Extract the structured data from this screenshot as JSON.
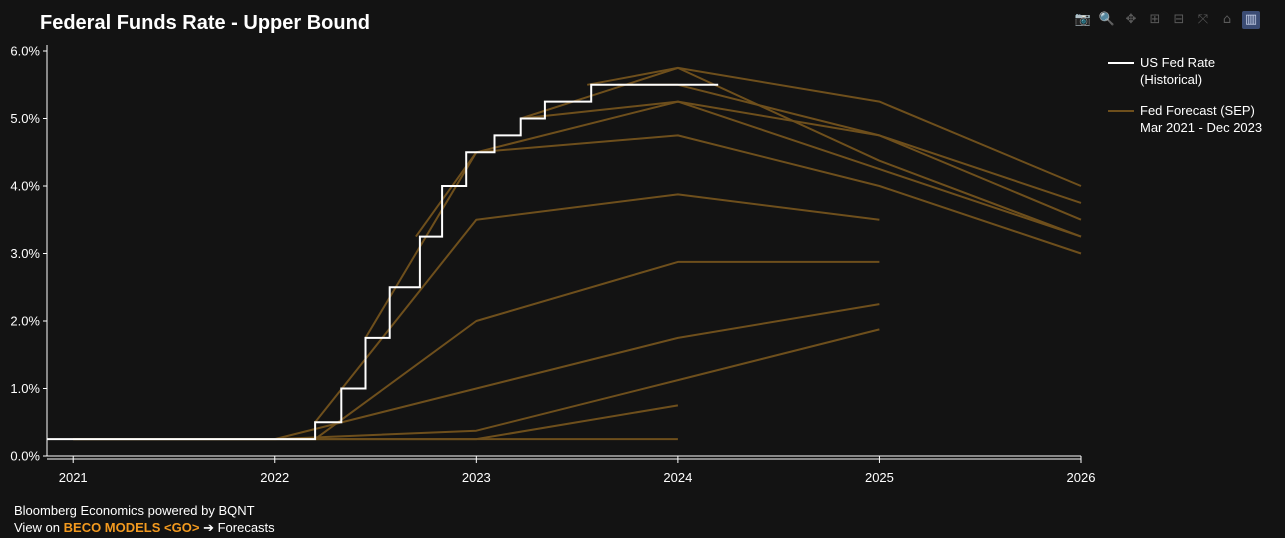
{
  "title": "Federal Funds Rate - Upper Bound",
  "toolbar": [
    {
      "name": "camera-icon",
      "glyph": "📷"
    },
    {
      "name": "zoom-icon",
      "glyph": "🔍"
    },
    {
      "name": "pan-icon",
      "glyph": "✥"
    },
    {
      "name": "zoom-in-icon",
      "glyph": "⊞"
    },
    {
      "name": "zoom-out-icon",
      "glyph": "⊟"
    },
    {
      "name": "autoscale-icon",
      "glyph": "⤧"
    },
    {
      "name": "home-icon",
      "glyph": "⌂"
    },
    {
      "name": "plotly-logo-icon",
      "glyph": "▥"
    }
  ],
  "footer": {
    "line1": "Bloomberg Economics powered by BQNT",
    "line2_prefix": "View on",
    "line2_highlight": "BECO MODELS <GO>",
    "line2_suffix": "➔ Forecasts"
  },
  "colors": {
    "historical": "#ffffff",
    "forecast": "#6e4f1c",
    "axis": "#ffffff",
    "highlight": "#f39a1f"
  },
  "chart_data": {
    "type": "line",
    "title": "Federal Funds Rate - Upper Bound",
    "xlabel": "",
    "ylabel": "",
    "xlim": [
      2020.87,
      2026.0
    ],
    "ylim": [
      0,
      6
    ],
    "x_ticks": [
      "2021",
      "2022",
      "2023",
      "2024",
      "2025",
      "2026"
    ],
    "y_ticks": [
      "0.0%",
      "1.0%",
      "2.0%",
      "3.0%",
      "4.0%",
      "5.0%",
      "6.0%"
    ],
    "grid": false,
    "legend_position": "right",
    "legend": [
      {
        "label_lines": [
          "US Fed Rate",
          "(Historical)"
        ],
        "color": "#ffffff"
      },
      {
        "label_lines": [
          "Fed Forecast (SEP)",
          "Mar 2021 - Dec 2023"
        ],
        "color": "#6e4f1c"
      }
    ],
    "series": [
      {
        "name": "US Fed Rate (Historical)",
        "kind": "step",
        "color": "#ffffff",
        "points": [
          [
            2020.87,
            0.25
          ],
          [
            2022.2,
            0.25
          ],
          [
            2022.2,
            0.5
          ],
          [
            2022.33,
            0.5
          ],
          [
            2022.33,
            1.0
          ],
          [
            2022.45,
            1.0
          ],
          [
            2022.45,
            1.75
          ],
          [
            2022.57,
            1.75
          ],
          [
            2022.57,
            2.5
          ],
          [
            2022.72,
            2.5
          ],
          [
            2022.72,
            3.25
          ],
          [
            2022.83,
            3.25
          ],
          [
            2022.83,
            4.0
          ],
          [
            2022.95,
            4.0
          ],
          [
            2022.95,
            4.5
          ],
          [
            2023.09,
            4.5
          ],
          [
            2023.09,
            4.75
          ],
          [
            2023.22,
            4.75
          ],
          [
            2023.22,
            5.0
          ],
          [
            2023.34,
            5.0
          ],
          [
            2023.34,
            5.25
          ],
          [
            2023.57,
            5.25
          ],
          [
            2023.57,
            5.5
          ],
          [
            2024.2,
            5.5
          ]
        ]
      },
      {
        "name": "SEP 1",
        "kind": "forecast",
        "points": [
          [
            2021.0,
            0.25
          ],
          [
            2022.0,
            0.25
          ],
          [
            2023.0,
            0.25
          ],
          [
            2024.0,
            0.25
          ]
        ]
      },
      {
        "name": "SEP 2",
        "kind": "forecast",
        "points": [
          [
            2021.0,
            0.25
          ],
          [
            2022.0,
            0.25
          ],
          [
            2023.0,
            0.25
          ],
          [
            2024.0,
            0.75
          ]
        ]
      },
      {
        "name": "SEP 3",
        "kind": "forecast",
        "points": [
          [
            2021.0,
            0.25
          ],
          [
            2022.0,
            0.25
          ],
          [
            2023.0,
            0.375
          ],
          [
            2024.0,
            1.125
          ],
          [
            2025.0,
            1.875
          ]
        ]
      },
      {
        "name": "SEP 4",
        "kind": "forecast",
        "points": [
          [
            2022.0,
            0.25
          ],
          [
            2023.0,
            1.0
          ],
          [
            2024.0,
            1.75
          ],
          [
            2025.0,
            2.25
          ]
        ]
      },
      {
        "name": "SEP 5",
        "kind": "forecast",
        "points": [
          [
            2022.2,
            0.25
          ],
          [
            2023.0,
            2.0
          ],
          [
            2024.0,
            2.875
          ],
          [
            2025.0,
            2.875
          ]
        ]
      },
      {
        "name": "SEP 6",
        "kind": "forecast",
        "points": [
          [
            2022.2,
            0.5
          ],
          [
            2023.0,
            3.5
          ],
          [
            2024.0,
            3.875
          ],
          [
            2025.0,
            3.5
          ]
        ]
      },
      {
        "name": "SEP 7",
        "kind": "forecast",
        "points": [
          [
            2022.45,
            1.75
          ],
          [
            2023.0,
            4.5
          ],
          [
            2024.0,
            4.75
          ],
          [
            2025.0,
            4.0
          ],
          [
            2026.0,
            3.0
          ]
        ]
      },
      {
        "name": "SEP 8",
        "kind": "forecast",
        "points": [
          [
            2022.7,
            3.25
          ],
          [
            2023.0,
            4.5
          ],
          [
            2024.0,
            5.25
          ],
          [
            2025.0,
            4.25
          ],
          [
            2026.0,
            3.25
          ]
        ]
      },
      {
        "name": "SEP 9",
        "kind": "forecast",
        "points": [
          [
            2023.22,
            5.0
          ],
          [
            2024.0,
            5.25
          ],
          [
            2025.0,
            4.75
          ],
          [
            2026.0,
            3.5
          ]
        ]
      },
      {
        "name": "SEP 10",
        "kind": "forecast",
        "points": [
          [
            2023.22,
            5.0
          ],
          [
            2024.0,
            5.75
          ],
          [
            2025.0,
            4.375
          ],
          [
            2026.0,
            3.25
          ]
        ]
      },
      {
        "name": "SEP 11",
        "kind": "forecast",
        "points": [
          [
            2023.55,
            5.5
          ],
          [
            2024.0,
            5.75
          ],
          [
            2025.0,
            5.25
          ],
          [
            2026.0,
            4.0
          ]
        ]
      },
      {
        "name": "SEP 12",
        "kind": "forecast",
        "points": [
          [
            2023.7,
            5.5
          ],
          [
            2024.0,
            5.5
          ],
          [
            2025.0,
            4.75
          ],
          [
            2026.0,
            3.75
          ]
        ]
      }
    ]
  }
}
